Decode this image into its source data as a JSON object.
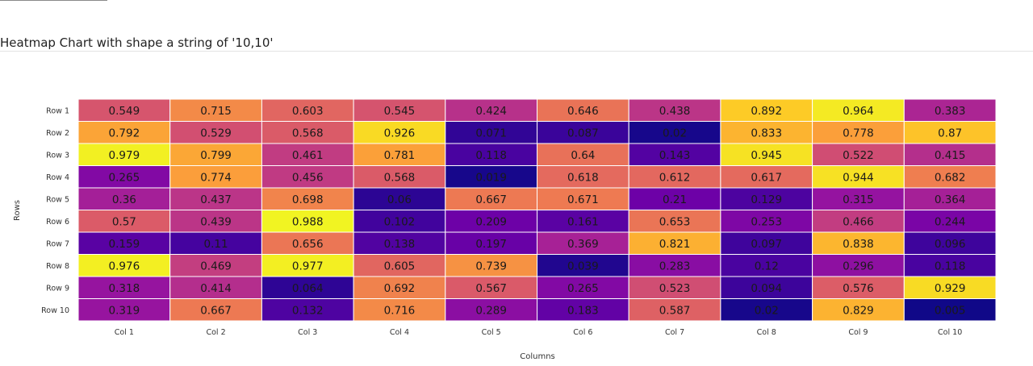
{
  "chart_title": "Heatmap Chart with shape a string of '10,10'",
  "chart_data": {
    "type": "heatmap",
    "title": "Heatmap Chart with shape a string of '10,10'",
    "xlabel": "Columns",
    "ylabel": "Rows",
    "columns": [
      "Col 1",
      "Col 2",
      "Col 3",
      "Col 4",
      "Col 5",
      "Col 6",
      "Col 7",
      "Col 8",
      "Col 9",
      "Col 10"
    ],
    "rows": [
      "Row 1",
      "Row 2",
      "Row 3",
      "Row 4",
      "Row 5",
      "Row 6",
      "Row 7",
      "Row 8",
      "Row 9",
      "Row 10"
    ],
    "values": [
      [
        0.549,
        0.715,
        0.603,
        0.545,
        0.424,
        0.646,
        0.438,
        0.892,
        0.964,
        0.383
      ],
      [
        0.792,
        0.529,
        0.568,
        0.926,
        0.071,
        0.087,
        0.02,
        0.833,
        0.778,
        0.87
      ],
      [
        0.979,
        0.799,
        0.461,
        0.781,
        0.118,
        0.64,
        0.143,
        0.945,
        0.522,
        0.415
      ],
      [
        0.265,
        0.774,
        0.456,
        0.568,
        0.019,
        0.618,
        0.612,
        0.617,
        0.944,
        0.682
      ],
      [
        0.36,
        0.437,
        0.698,
        0.06,
        0.667,
        0.671,
        0.21,
        0.129,
        0.315,
        0.364
      ],
      [
        0.57,
        0.439,
        0.988,
        0.102,
        0.209,
        0.161,
        0.653,
        0.253,
        0.466,
        0.244
      ],
      [
        0.159,
        0.11,
        0.656,
        0.138,
        0.197,
        0.369,
        0.821,
        0.097,
        0.838,
        0.096
      ],
      [
        0.976,
        0.469,
        0.977,
        0.605,
        0.739,
        0.039,
        0.283,
        0.12,
        0.296,
        0.118
      ],
      [
        0.318,
        0.414,
        0.064,
        0.692,
        0.567,
        0.265,
        0.523,
        0.094,
        0.576,
        0.929
      ],
      [
        0.319,
        0.667,
        0.132,
        0.716,
        0.289,
        0.183,
        0.587,
        0.02,
        0.829,
        0.005
      ]
    ],
    "colorscale": "plasma",
    "legend": "none"
  }
}
